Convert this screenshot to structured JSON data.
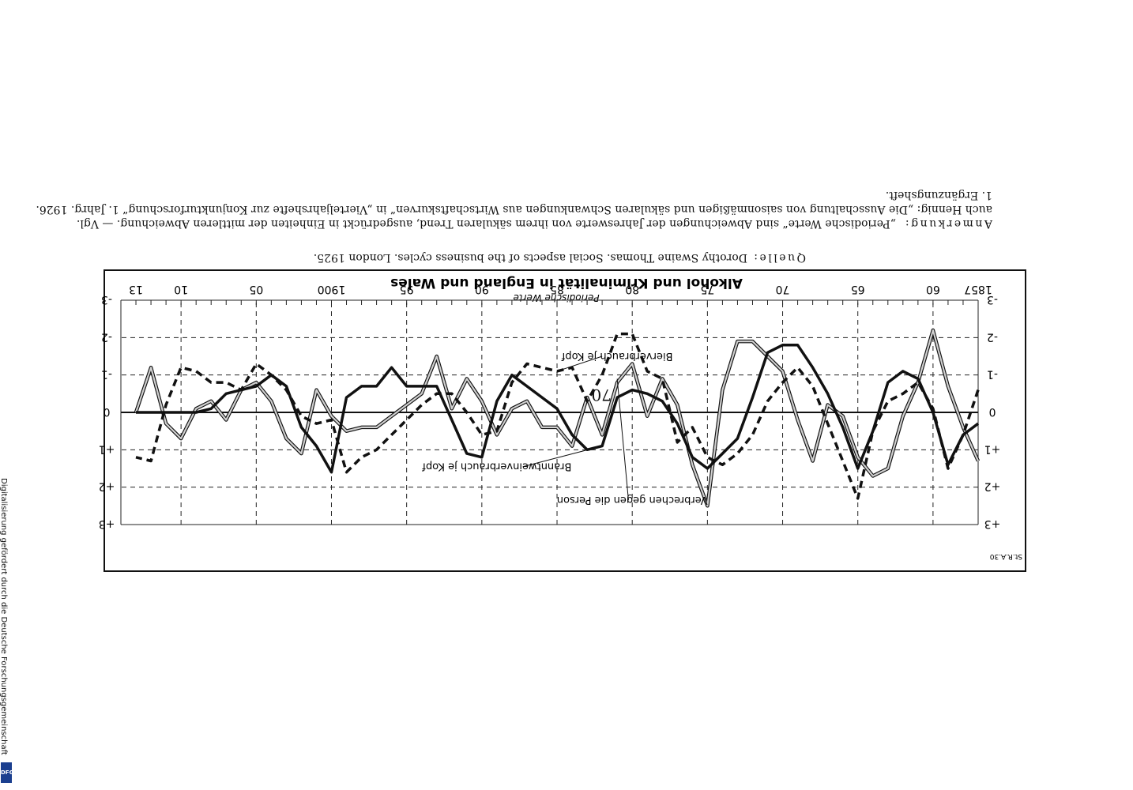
{
  "page_number": "70",
  "source": {
    "label": "Quelle:",
    "text": "Dorothy Swaine Thomas. Social aspects of the business cycles. London 1925."
  },
  "note": {
    "label": "Anmerkung:",
    "line1": "„Periodische Werte“ sind Abweichungen der Jahreswerte von ihrem säkularen Trend, ausgedrückt in Einheiten der mittleren Abweichung. — Vgl.",
    "line2": "auch Hennig: „Die Ausschaltung von saisonmäßigen und säkularen Schwankungen aus Wirtschaftskurven“ in „Vierteljahrshefte zur Konjunkturforschung“ 1. Jahrg. 1926.",
    "line3": "1. Ergänzungsheft."
  },
  "footer": {
    "text": "Digitalisierung gefördert durch die Deutsche Forschungsgemeinschaft",
    "logo": "DFG"
  },
  "chart_data": {
    "type": "line",
    "title": "Alkohol und Kriminalität in England und Wales",
    "subtitle": "Periodische Werte",
    "code": "St.R.A.30",
    "x": [
      1857,
      1858,
      1859,
      1860,
      1861,
      1862,
      1863,
      1864,
      1865,
      1866,
      1867,
      1868,
      1869,
      1870,
      1871,
      1872,
      1873,
      1874,
      1875,
      1876,
      1877,
      1878,
      1879,
      1880,
      1881,
      1882,
      1883,
      1884,
      1885,
      1886,
      1887,
      1888,
      1889,
      1890,
      1891,
      1892,
      1893,
      1894,
      1895,
      1896,
      1897,
      1898,
      1899,
      1900,
      1901,
      1902,
      1903,
      1904,
      1905,
      1906,
      1907,
      1908,
      1909,
      1910,
      1911,
      1912,
      1913
    ],
    "xlim": [
      1857,
      1914
    ],
    "ylim": [
      3,
      -3
    ],
    "x_tick_labels": [
      {
        "x": 1857,
        "label": "1857"
      },
      {
        "x": 1860,
        "label": "60"
      },
      {
        "x": 1865,
        "label": "65"
      },
      {
        "x": 1870,
        "label": "70"
      },
      {
        "x": 1875,
        "label": "75"
      },
      {
        "x": 1880,
        "label": "80"
      },
      {
        "x": 1885,
        "label": "85"
      },
      {
        "x": 1890,
        "label": "90"
      },
      {
        "x": 1895,
        "label": "95"
      },
      {
        "x": 1900,
        "label": "1900"
      },
      {
        "x": 1905,
        "label": "05"
      },
      {
        "x": 1910,
        "label": "10"
      },
      {
        "x": 1913,
        "label": "13"
      }
    ],
    "y_ticks": [
      {
        "y": 3,
        "label": "+3"
      },
      {
        "y": 2,
        "label": "+2"
      },
      {
        "y": 1,
        "label": "+1"
      },
      {
        "y": 0,
        "label": "0"
      },
      {
        "y": -1,
        "label": "-1"
      },
      {
        "y": -2,
        "label": "-2"
      },
      {
        "y": -3,
        "label": "-3"
      }
    ],
    "grid": true,
    "series": [
      {
        "name": "Verbrechen gegen die Person",
        "style": "double",
        "values": [
          1.3,
          0.4,
          -0.7,
          -2.2,
          -0.8,
          0.1,
          1.5,
          1.7,
          1.2,
          0.1,
          -0.2,
          1.3,
          0.2,
          -1.1,
          -1.5,
          -1.9,
          -1.9,
          -0.6,
          2.5,
          1.4,
          -0.2,
          -0.9,
          0.1,
          -1.3,
          -0.8,
          0.6,
          -0.4,
          0.9,
          0.4,
          0.4,
          -0.3,
          -0.1,
          0.6,
          -0.3,
          -0.9,
          -0.1,
          -1.5,
          -0.5,
          -0.2,
          0.1,
          0.4,
          0.4,
          0.5,
          0.1,
          -0.6,
          1.1,
          0.7,
          -0.3,
          -0.8,
          -0.6,
          0.2,
          -0.3,
          -0.1,
          0.7,
          0.3,
          -1.2,
          0.0
        ]
      },
      {
        "name": "Branntweinverbrauch je Kopf",
        "style": "solid-thick",
        "values": [
          0.3,
          0.6,
          1.4,
          0.0,
          -0.9,
          -1.1,
          -0.8,
          0.5,
          1.5,
          0.4,
          -0.5,
          -1.2,
          -1.8,
          -1.8,
          -1.6,
          -0.4,
          0.7,
          1.1,
          1.5,
          1.2,
          0.3,
          -0.3,
          -0.5,
          -0.6,
          -0.4,
          0.9,
          1.0,
          0.6,
          -0.1,
          -0.4,
          -0.7,
          -1.0,
          -0.3,
          1.2,
          1.1,
          0.2,
          -0.7,
          -0.7,
          -0.7,
          -1.2,
          -0.7,
          -0.7,
          -0.4,
          1.6,
          0.9,
          0.4,
          -0.7,
          -1.0,
          -0.7,
          -0.6,
          -0.5,
          -0.1,
          0.0,
          0.0,
          0.0,
          0.0,
          0.0
        ]
      },
      {
        "name": "Bierverbrauch je Kopf",
        "style": "dashed",
        "values": [
          -0.6,
          0.6,
          1.5,
          -0.1,
          -0.8,
          -0.5,
          -0.3,
          0.5,
          2.3,
          1.3,
          0.3,
          -0.7,
          -1.2,
          -0.8,
          -0.3,
          0.6,
          1.1,
          1.4,
          1.2,
          0.4,
          0.8,
          -0.9,
          -1.1,
          -2.1,
          -2.1,
          -1.0,
          -0.3,
          -1.2,
          -1.1,
          -1.2,
          -1.3,
          -0.8,
          0.5,
          0.6,
          0.0,
          -0.5,
          -0.5,
          -0.2,
          0.2,
          0.6,
          1.0,
          1.2,
          1.6,
          0.2,
          0.3,
          0.1,
          -0.6,
          -1.0,
          -1.3,
          -0.6,
          -0.8,
          -0.8,
          -1.1,
          -1.2,
          -0.2,
          1.3,
          1.2
        ]
      }
    ]
  }
}
